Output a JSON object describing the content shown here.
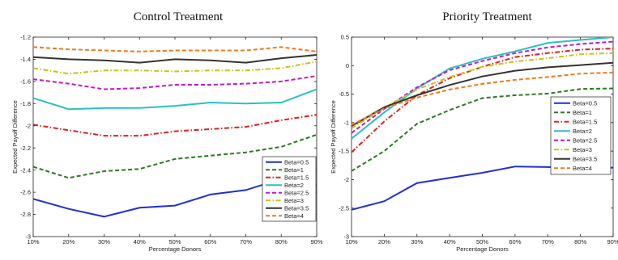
{
  "chart_data": [
    {
      "type": "line",
      "title": "Control Treatment",
      "xlabel": "Percentage Donors",
      "ylabel": "Expected Payoff Difference",
      "x": [
        "10%",
        "20%",
        "30%",
        "40%",
        "50%",
        "60%",
        "70%",
        "80%",
        "90%"
      ],
      "ylim": [
        -3,
        -1.2
      ],
      "yticks": [
        "-3",
        "-2.8",
        "-2.6",
        "-2.4",
        "-2.2",
        "-2",
        "-1.8",
        "-1.6",
        "-1.4",
        "-1.2"
      ],
      "grid": false,
      "legend": "bottom-right",
      "series": [
        {
          "name": "Beta=0.5",
          "color": "#1f2fd6",
          "dash": "solid",
          "values": [
            -2.66,
            -2.75,
            -2.82,
            -2.74,
            -2.72,
            -2.62,
            -2.58,
            -2.48,
            -2.54
          ]
        },
        {
          "name": "Beta=1",
          "color": "#2a7a22",
          "dash": "dashed",
          "values": [
            -2.37,
            -2.47,
            -2.41,
            -2.39,
            -2.3,
            -2.27,
            -2.24,
            -2.19,
            -2.08
          ]
        },
        {
          "name": "Beta=1.5",
          "color": "#e0201e",
          "dash": "dashdot",
          "values": [
            -1.99,
            -2.04,
            -2.09,
            -2.09,
            -2.05,
            -2.03,
            -2.01,
            -1.95,
            -1.9
          ]
        },
        {
          "name": "Beta=2",
          "color": "#27c2c2",
          "dash": "solid",
          "values": [
            -1.75,
            -1.85,
            -1.84,
            -1.84,
            -1.82,
            -1.79,
            -1.8,
            -1.79,
            -1.67
          ]
        },
        {
          "name": "Beta=2.5",
          "color": "#c218c9",
          "dash": "dashed",
          "values": [
            -1.58,
            -1.62,
            -1.67,
            -1.66,
            -1.63,
            -1.63,
            -1.62,
            -1.6,
            -1.55
          ]
        },
        {
          "name": "Beta=3",
          "color": "#c9c11a",
          "dash": "dashdot",
          "values": [
            -1.48,
            -1.53,
            -1.5,
            -1.5,
            -1.51,
            -1.5,
            -1.5,
            -1.48,
            -1.42
          ]
        },
        {
          "name": "Beta=3.5",
          "color": "#333333",
          "dash": "solid",
          "values": [
            -1.38,
            -1.4,
            -1.41,
            -1.43,
            -1.4,
            -1.41,
            -1.43,
            -1.39,
            -1.36
          ]
        },
        {
          "name": "Beta=4",
          "color": "#f0791e",
          "dash": "dashed",
          "values": [
            -1.29,
            -1.31,
            -1.32,
            -1.33,
            -1.32,
            -1.32,
            -1.32,
            -1.29,
            -1.33
          ]
        }
      ]
    },
    {
      "type": "line",
      "title": "Priority Treatment",
      "xlabel": "Percentage Donors",
      "ylabel": "Expected Payoff Difference",
      "x": [
        "10%",
        "20%",
        "30%",
        "40%",
        "50%",
        "60%",
        "70%",
        "80%",
        "90%"
      ],
      "ylim": [
        -3,
        0.5
      ],
      "yticks": [
        "-3",
        "-2.5",
        "-2",
        "-1.5",
        "-1",
        "-0.5",
        "0",
        "0.5"
      ],
      "grid": false,
      "legend": "center-right",
      "series": [
        {
          "name": "Beta=0.5",
          "color": "#1f2fd6",
          "dash": "solid",
          "values": [
            -2.53,
            -2.38,
            -2.06,
            -1.97,
            -1.88,
            -1.77,
            -1.78,
            -1.8,
            -1.79
          ]
        },
        {
          "name": "Beta=1",
          "color": "#2a7a22",
          "dash": "dashed",
          "values": [
            -1.85,
            -1.5,
            -1.02,
            -0.78,
            -0.57,
            -0.52,
            -0.49,
            -0.41,
            -0.4
          ]
        },
        {
          "name": "Beta=1.5",
          "color": "#e0201e",
          "dash": "dashdot",
          "values": [
            -1.52,
            -0.98,
            -0.52,
            -0.22,
            -0.02,
            0.15,
            0.22,
            0.28,
            0.3
          ]
        },
        {
          "name": "Beta=2",
          "color": "#27c2c2",
          "dash": "solid",
          "values": [
            -1.28,
            -0.82,
            -0.4,
            -0.05,
            0.12,
            0.25,
            0.4,
            0.45,
            0.5
          ]
        },
        {
          "name": "Beta=2.5",
          "color": "#c218c9",
          "dash": "dashed",
          "values": [
            -1.18,
            -0.76,
            -0.38,
            -0.08,
            0.08,
            0.22,
            0.32,
            0.38,
            0.42
          ]
        },
        {
          "name": "Beta=3",
          "color": "#c9c11a",
          "dash": "dashdot",
          "values": [
            -1.1,
            -0.74,
            -0.42,
            -0.2,
            -0.02,
            0.07,
            0.13,
            0.2,
            0.22
          ]
        },
        {
          "name": "Beta=3.5",
          "color": "#333333",
          "dash": "solid",
          "values": [
            -1.06,
            -0.73,
            -0.52,
            -0.34,
            -0.19,
            -0.09,
            -0.03,
            0.01,
            0.05
          ]
        },
        {
          "name": "Beta=4",
          "color": "#f0791e",
          "dash": "dashed",
          "values": [
            -1.04,
            -0.75,
            -0.56,
            -0.42,
            -0.32,
            -0.25,
            -0.2,
            -0.14,
            -0.12
          ]
        }
      ]
    }
  ]
}
